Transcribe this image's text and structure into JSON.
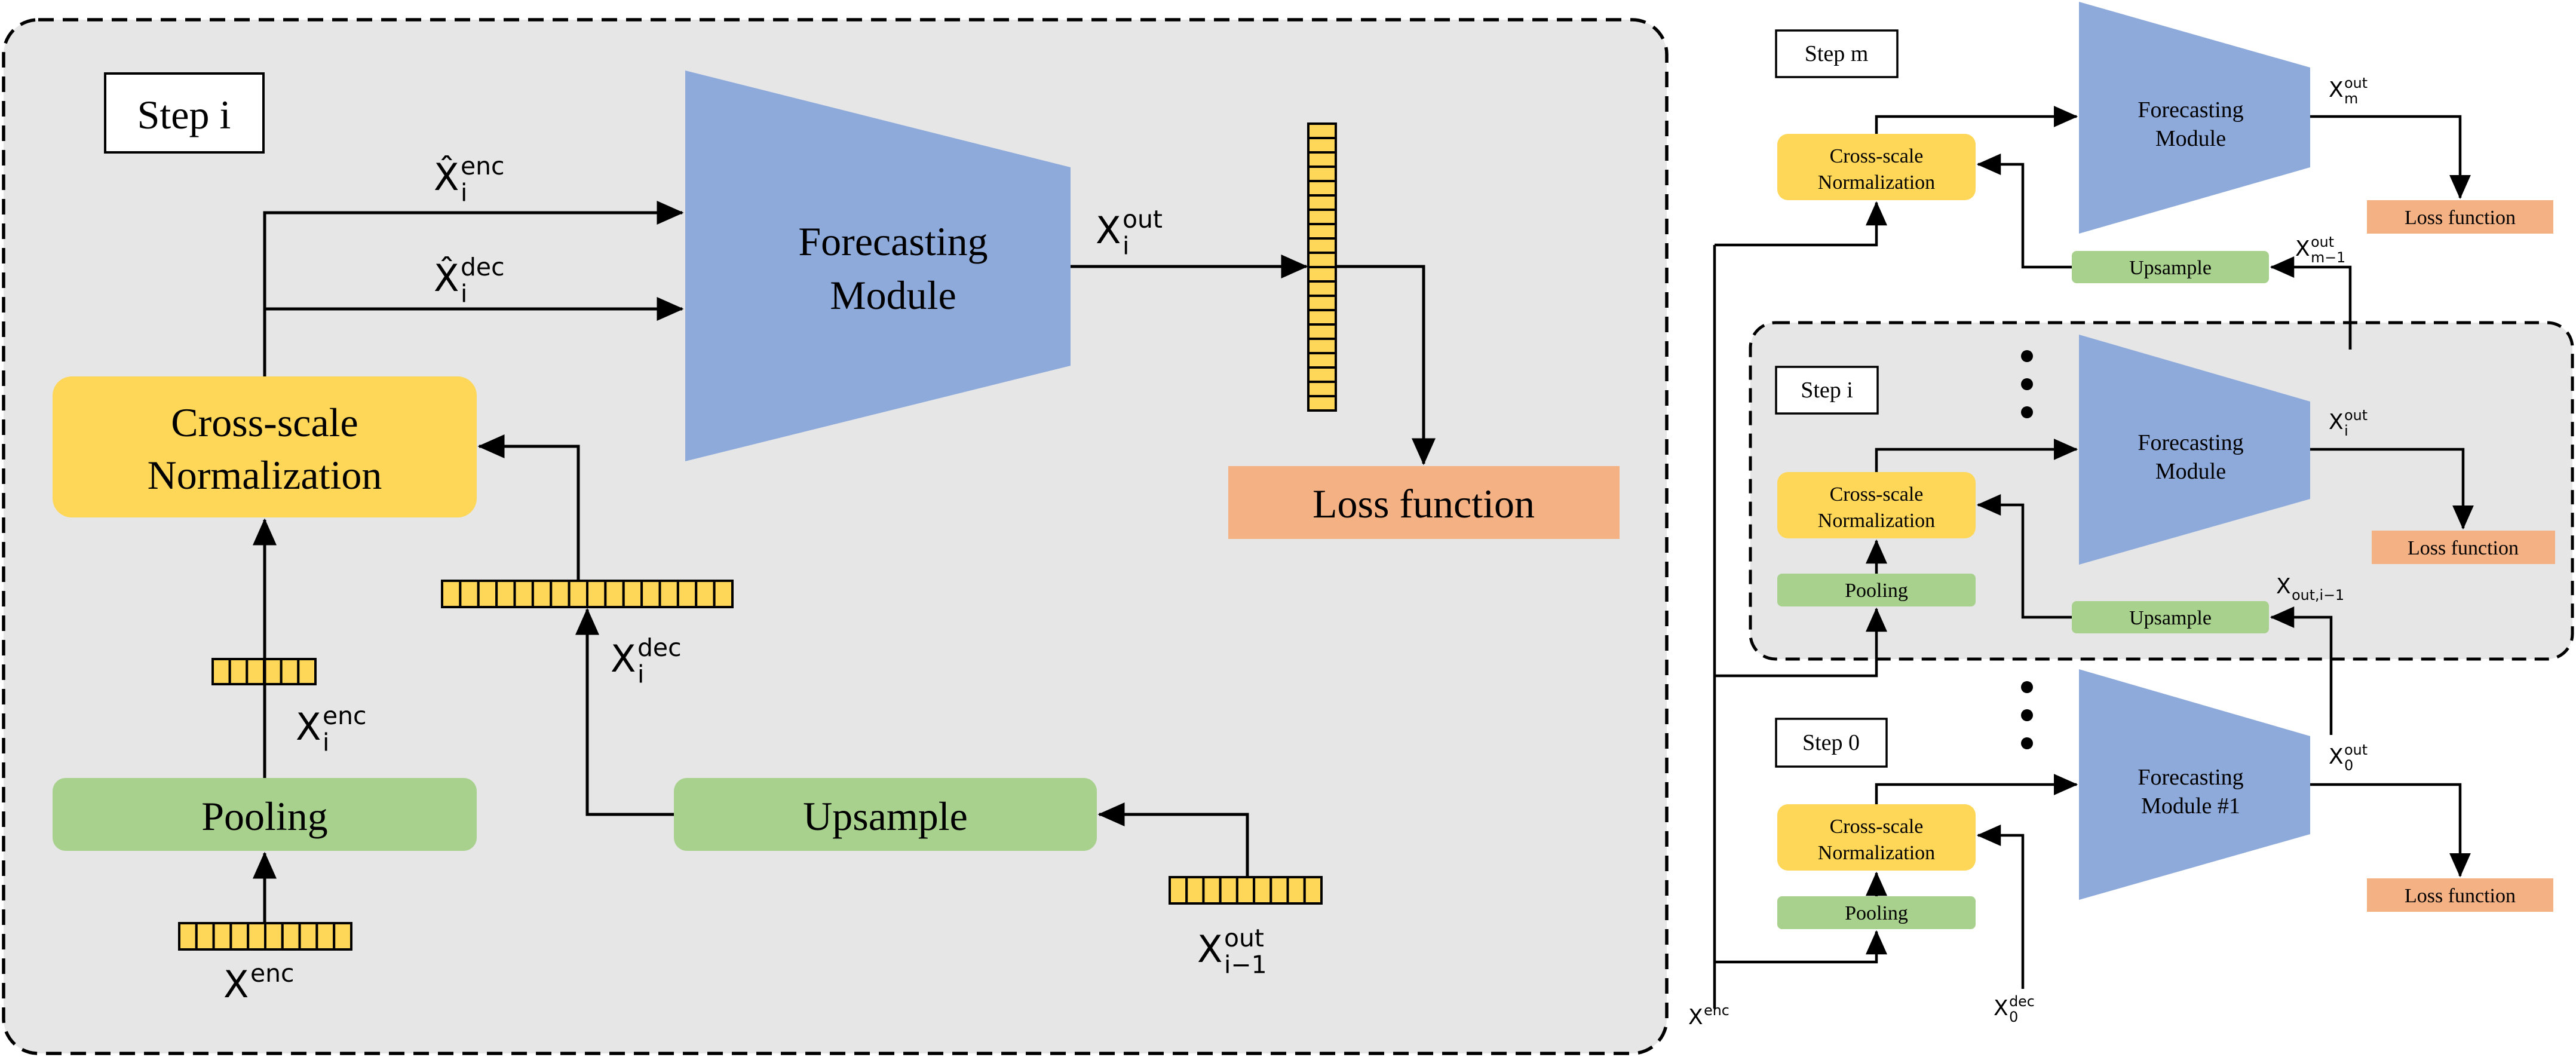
{
  "left_panel": {
    "step_label": "Step i",
    "forecasting_module": [
      "Forecasting",
      "Module"
    ],
    "cross_scale_normalization": [
      "Cross-scale",
      "Normalization"
    ],
    "pooling": "Pooling",
    "upsample": "Upsample",
    "loss_function": "Loss function",
    "vars": {
      "x_hat_enc": {
        "base": "X̂",
        "sup": "enc",
        "sub": "i"
      },
      "x_hat_dec": {
        "base": "X̂",
        "sup": "dec",
        "sub": "i"
      },
      "x_out": {
        "base": "X",
        "sup": "out",
        "sub": "i"
      },
      "x_enc_i": {
        "base": "X",
        "sup": "enc",
        "sub": "i"
      },
      "x_dec_i": {
        "base": "X",
        "sup": "dec",
        "sub": "i"
      },
      "x_enc": {
        "base": "X",
        "sup": "enc",
        "sub": ""
      },
      "x_out_prev": {
        "base": "X",
        "sup": "out",
        "sub": "i−1"
      }
    }
  },
  "right_panel": {
    "step_m": {
      "label": "Step m",
      "module": [
        "Forecasting",
        "Module"
      ],
      "norm": [
        "Cross-scale",
        "Normalization"
      ],
      "upsample": "Upsample",
      "loss": "Loss function",
      "out": {
        "base": "X",
        "sup": "out",
        "sub": "m"
      },
      "prev": {
        "base": "X",
        "sup": "out",
        "sub": "m−1"
      }
    },
    "step_i": {
      "label": "Step i",
      "module": [
        "Forecasting",
        "Module"
      ],
      "norm": [
        "Cross-scale",
        "Normalization"
      ],
      "pooling": "Pooling",
      "upsample": "Upsample",
      "loss": "Loss function",
      "out": {
        "base": "X",
        "sup": "out",
        "sub": "i"
      },
      "prev": {
        "base": "X",
        "sup": "",
        "sub": "out,i−1"
      }
    },
    "step_0": {
      "label": "Step 0",
      "module": [
        "Forecasting",
        "Module #1"
      ],
      "norm": [
        "Cross-scale",
        "Normalization"
      ],
      "pooling": "Pooling",
      "loss": "Loss function",
      "out": {
        "base": "X",
        "sup": "out",
        "sub": "0"
      }
    },
    "x_enc": {
      "base": "X",
      "sup": "enc",
      "sub": ""
    },
    "x_dec0": {
      "base": "X",
      "sup": "dec",
      "sub": "0"
    }
  },
  "colors": {
    "panel_bg": "#e6e6e6",
    "forecasting": "#8eaadb",
    "normalization": "#fed758",
    "pooling": "#a8d18d",
    "loss": "#f4b183",
    "tensor_cell": "#fed758"
  }
}
